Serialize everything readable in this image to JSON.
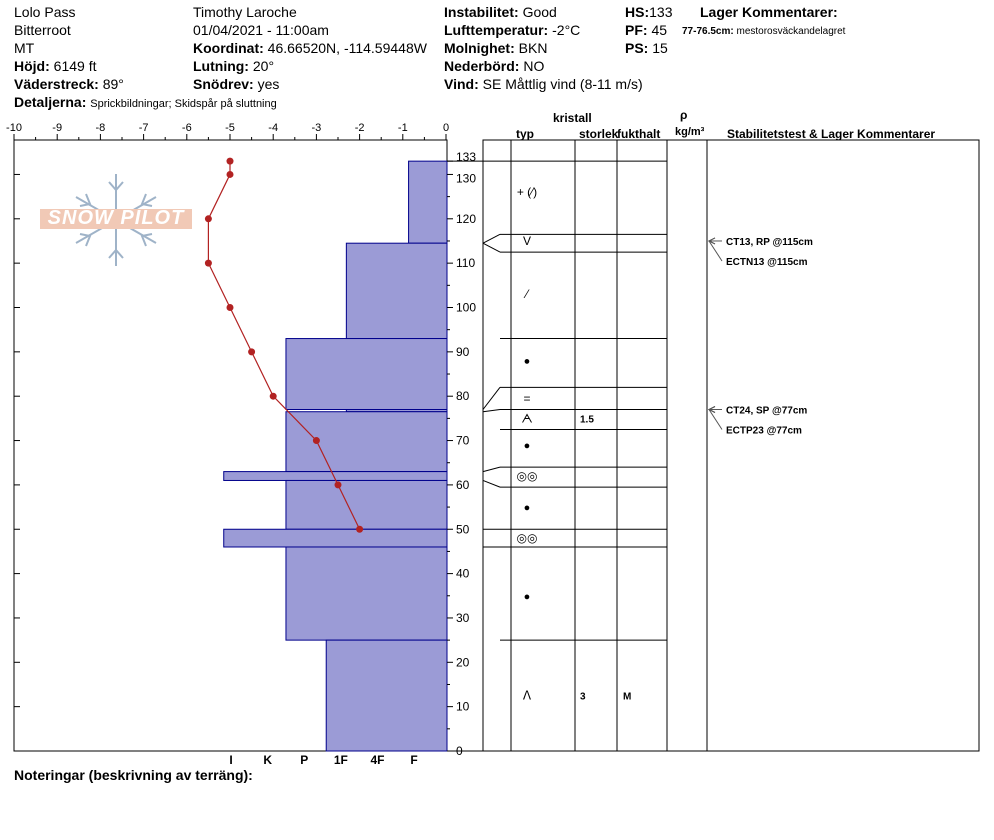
{
  "header": {
    "location": "Lolo Pass",
    "range": "Bitterroot",
    "state": "MT",
    "elevation_label": "Höjd:",
    "elevation": "6149 ft",
    "aspect_label": "Väderstreck:",
    "aspect": "89°",
    "details_label": "Detaljerna:",
    "details": "Sprickbildningar;  Skidspår på sluttning",
    "observer": "Timothy  Laroche",
    "datetime": "01/04/2021 - 11:00am",
    "coord_label": "Koordinat:",
    "coords": "46.66520N, -114.59448W",
    "slope_label": "Lutning:",
    "slope": "20°",
    "drift_label": "Snödrev:",
    "drift": "yes",
    "stability_label": "Instabilitet:",
    "stability": "Good",
    "airtemp_label": "Lufttemperatur:",
    "airtemp": "-2°C",
    "sky_label": "Molnighet:",
    "sky": "BKN",
    "precip_label": "Nederbörd:",
    "precip": "NO",
    "wind_label": "Vind:",
    "wind": "SE  Måttlig vind (8-11 m/s)",
    "hs_label": "HS:",
    "hs": "133",
    "pf_label": "PF:",
    "pf": "45",
    "ps_label": "PS:",
    "ps": "15",
    "layer_comments_label": "Lager Kommentarer:",
    "layer_comment_range": "77-76.5cm:",
    "layer_comment_text": "mestorosväckandelagret"
  },
  "logo_text": "SNOW PILOT",
  "notes_label": "Noteringar (beskrivning av terräng):",
  "table_headers": {
    "kristall": "kristall",
    "typ": "typ",
    "storlek": "storlek",
    "fukthalt": "fukthalt",
    "rho": "ρ",
    "density_unit": "kg/m³",
    "comments": "Stabilitetstest & Lager Kommentarer"
  },
  "tests": [
    {
      "text": "CT13, RP @115cm",
      "depth": 115
    },
    {
      "text": "ECTN13 @115cm",
      "depth": 115
    },
    {
      "text": "CT24, SP @77cm",
      "depth": 77
    },
    {
      "text": "ECTP23 @77cm",
      "depth": 77
    }
  ],
  "colors": {
    "hardness_fill": "#9b9bd6",
    "hardness_stroke": "#00008b",
    "temp_line": "#b22222"
  },
  "chart_data": {
    "type": "area",
    "title": "",
    "temp_axis": {
      "ticks": [
        "-10",
        "-9",
        "-8",
        "-7",
        "-6",
        "-5",
        "-4",
        "-3",
        "-2",
        "-1",
        "0"
      ],
      "range": [
        -10,
        0
      ]
    },
    "hardness_axis": {
      "ticks": [
        "I",
        "K",
        "P",
        "1F",
        "4F",
        "F"
      ]
    },
    "height_axis": {
      "ticks": [
        "0",
        "10",
        "20",
        "30",
        "40",
        "50",
        "60",
        "70",
        "80",
        "90",
        "100",
        "110",
        "120",
        "130",
        "133"
      ],
      "range": [
        0,
        133
      ]
    },
    "hardness_layers": [
      {
        "top": 133,
        "bottom": 114.5,
        "hardness": 1.05
      },
      {
        "top": 114.5,
        "bottom": 93,
        "hardness": 2.75
      },
      {
        "top": 93,
        "bottom": 77,
        "hardness": 4.4
      },
      {
        "top": 77,
        "bottom": 76.5,
        "hardness": 2.75
      },
      {
        "top": 76.5,
        "bottom": 63,
        "hardness": 4.4
      },
      {
        "top": 63,
        "bottom": 61,
        "hardness": 6.1
      },
      {
        "top": 61,
        "bottom": 50,
        "hardness": 4.4
      },
      {
        "top": 50,
        "bottom": 46,
        "hardness": 6.1
      },
      {
        "top": 46,
        "bottom": 25,
        "hardness": 4.4
      },
      {
        "top": 25,
        "bottom": 0,
        "hardness": 3.3
      }
    ],
    "temperature_profile": [
      {
        "height": 133,
        "temp": -5.0
      },
      {
        "height": 130,
        "temp": -5.0
      },
      {
        "height": 120,
        "temp": -5.5
      },
      {
        "height": 110,
        "temp": -5.5
      },
      {
        "height": 100,
        "temp": -5.0
      },
      {
        "height": 90,
        "temp": -4.5
      },
      {
        "height": 80,
        "temp": -4.0
      },
      {
        "height": 70,
        "temp": -3.0
      },
      {
        "height": 60,
        "temp": -2.5
      },
      {
        "height": 50,
        "temp": -2.0
      }
    ],
    "layer_boundaries": [
      133,
      116.5,
      112.5,
      93,
      82,
      77,
      72.5,
      64,
      59.5,
      50,
      46,
      25,
      0
    ],
    "crystals": [
      {
        "height": 126,
        "symbol": "+ (⁄)",
        "size": "",
        "moisture": ""
      },
      {
        "height": 115,
        "symbol": "V",
        "size": "",
        "moisture": ""
      },
      {
        "height": 103,
        "symbol": "⁄",
        "size": "",
        "moisture": ""
      },
      {
        "height": 88,
        "symbol": "●",
        "size": "",
        "moisture": ""
      },
      {
        "height": 79.5,
        "symbol": "=",
        "size": "",
        "moisture": ""
      },
      {
        "height": 75,
        "symbol": "ᗅ",
        "size": "1.5",
        "moisture": ""
      },
      {
        "height": 69,
        "symbol": "●",
        "size": "",
        "moisture": ""
      },
      {
        "height": 62,
        "symbol": "◎◎",
        "size": "",
        "moisture": ""
      },
      {
        "height": 55,
        "symbol": "●",
        "size": "",
        "moisture": ""
      },
      {
        "height": 48,
        "symbol": "◎◎",
        "size": "",
        "moisture": ""
      },
      {
        "height": 35,
        "symbol": "●",
        "size": "",
        "moisture": ""
      },
      {
        "height": 12.5,
        "symbol": "ᐱ",
        "size": "3",
        "moisture": "M"
      }
    ]
  }
}
